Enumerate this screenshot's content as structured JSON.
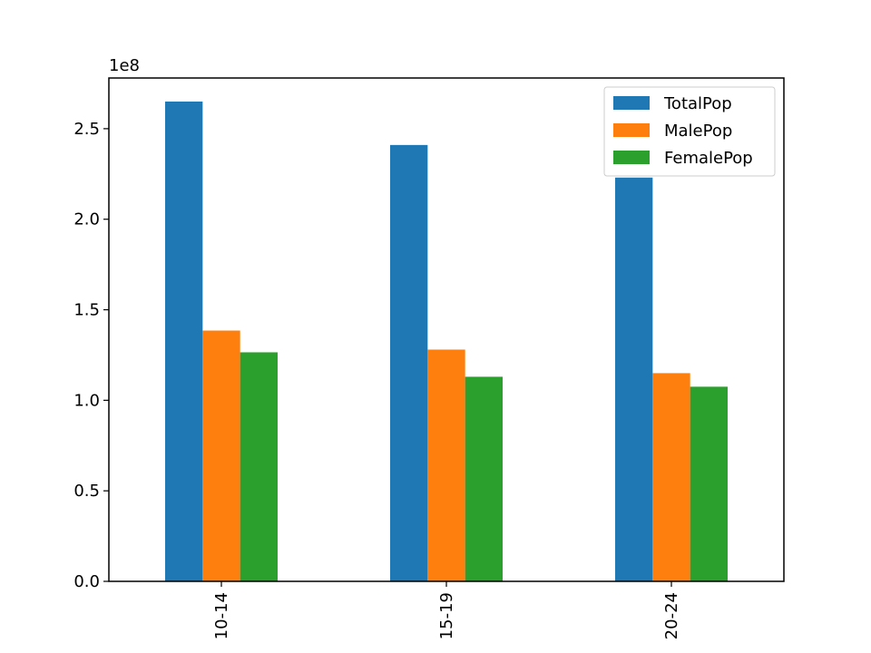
{
  "chart_data": {
    "type": "bar",
    "categories": [
      "10-14",
      "15-19",
      "20-24"
    ],
    "series": [
      {
        "name": "TotalPop",
        "values": [
          265000000,
          241000000,
          223000000
        ],
        "color": "#1f77b4"
      },
      {
        "name": "MalePop",
        "values": [
          138500000,
          128000000,
          115000000
        ],
        "color": "#ff7f0e"
      },
      {
        "name": "FemalePop",
        "values": [
          126500000,
          113000000,
          107500000
        ],
        "color": "#2ca02c"
      }
    ],
    "ylim": [
      0,
      278000000
    ],
    "yticks": [
      0,
      50000000,
      100000000,
      150000000,
      200000000,
      250000000
    ],
    "ytick_labels": [
      "0.0",
      "0.5",
      "1.0",
      "1.5",
      "2.0",
      "2.5"
    ],
    "y_offset_label": "1e8",
    "xtick_rotation": "vertical",
    "legend_placement": "top-right",
    "grid": false
  }
}
